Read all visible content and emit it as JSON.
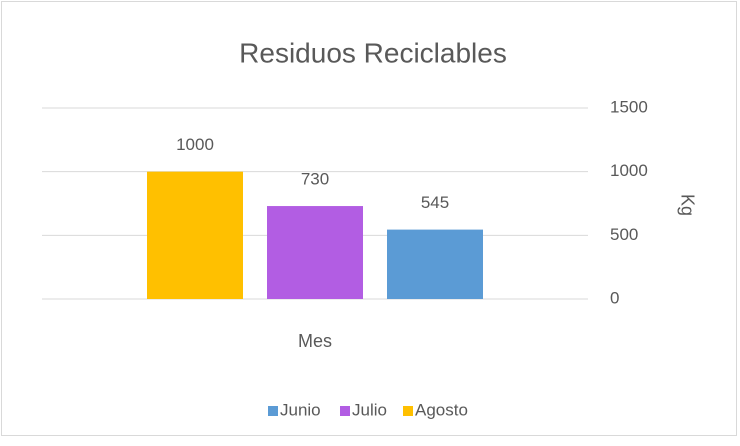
{
  "chart_data": {
    "type": "bar",
    "title": "Residuos Reciclables",
    "categories": [
      "Mes"
    ],
    "series": [
      {
        "name": "Junio",
        "color": "#5b9bd5",
        "values": [
          545
        ]
      },
      {
        "name": "Julio",
        "color": "#b25de3",
        "values": [
          730
        ]
      },
      {
        "name": "Agosto",
        "color": "#ffc000",
        "values": [
          1000
        ]
      }
    ],
    "ylabel": "Kg",
    "ylim": [
      0,
      1500
    ],
    "yticks": [
      0,
      500,
      1000,
      1500
    ],
    "grid": true,
    "yaxis_side": "right",
    "series_order": "reversed",
    "legend": "bottom"
  }
}
